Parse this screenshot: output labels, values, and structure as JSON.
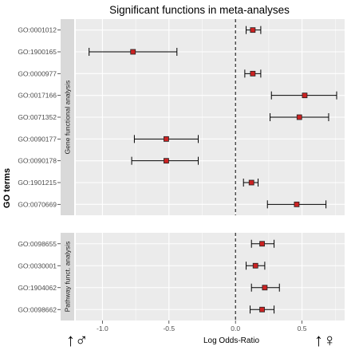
{
  "chart_data": {
    "type": "scatter",
    "subtype": "forest-plot",
    "title": "Significant functions in meta-analyses",
    "xlabel": "Log Odds-Ratio",
    "ylabel": "GO terms",
    "xlim": [
      -1.2,
      0.82
    ],
    "xticks": [
      -1.0,
      -0.5,
      0.0,
      0.5
    ],
    "xtick_labels": [
      "-1.0",
      "-0.5",
      "0.0",
      "0.5"
    ],
    "reference_line": 0,
    "left_symbol": "↑♂",
    "right_symbol": "↑♀",
    "colors": {
      "panel_bg": "#ebebeb",
      "strip_bg": "#d9d9d9",
      "point": "#cc2222",
      "gridline": "#ffffff"
    },
    "facets": [
      {
        "label": "Gene functional analysis",
        "terms": [
          {
            "go": "GO:0001012",
            "estimate": 0.13,
            "ci_low": 0.08,
            "ci_high": 0.19
          },
          {
            "go": "GO:1900165",
            "estimate": -0.77,
            "ci_low": -1.1,
            "ci_high": -0.44
          },
          {
            "go": "GO:0000977",
            "estimate": 0.13,
            "ci_low": 0.07,
            "ci_high": 0.19
          },
          {
            "go": "GO:0017166",
            "estimate": 0.52,
            "ci_low": 0.27,
            "ci_high": 0.76
          },
          {
            "go": "GO:0071352",
            "estimate": 0.48,
            "ci_low": 0.26,
            "ci_high": 0.7
          },
          {
            "go": "GO:0090177",
            "estimate": -0.52,
            "ci_low": -0.76,
            "ci_high": -0.28
          },
          {
            "go": "GO:0090178",
            "estimate": -0.52,
            "ci_low": -0.78,
            "ci_high": -0.28
          },
          {
            "go": "GO:1901215",
            "estimate": 0.12,
            "ci_low": 0.06,
            "ci_high": 0.17
          },
          {
            "go": "GO:0070669",
            "estimate": 0.46,
            "ci_low": 0.24,
            "ci_high": 0.68
          }
        ]
      },
      {
        "label": "Pathway funct. analysis",
        "terms": [
          {
            "go": "GO:0098655",
            "estimate": 0.2,
            "ci_low": 0.12,
            "ci_high": 0.29
          },
          {
            "go": "GO:0030001",
            "estimate": 0.15,
            "ci_low": 0.08,
            "ci_high": 0.22
          },
          {
            "go": "GO:1904062",
            "estimate": 0.22,
            "ci_low": 0.12,
            "ci_high": 0.33
          },
          {
            "go": "GO:0098662",
            "estimate": 0.2,
            "ci_low": 0.11,
            "ci_high": 0.29
          }
        ]
      }
    ]
  }
}
